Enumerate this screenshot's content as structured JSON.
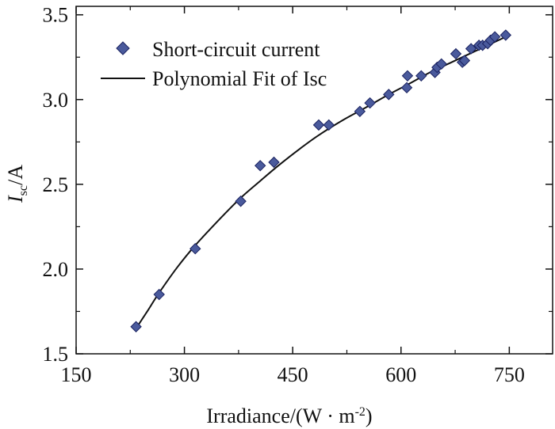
{
  "chart_data": {
    "type": "scatter",
    "title": "",
    "xlabel": "Irradiance/(W · m",
    "xlabel_sup": "-2",
    "xlabel_close": ")",
    "ylabel_main": "I",
    "ylabel_sub": "sc",
    "ylabel_tail": "/A",
    "xlim": [
      150,
      810
    ],
    "ylim": [
      1.5,
      3.55
    ],
    "xticks": [
      150,
      300,
      450,
      600,
      750
    ],
    "yticks": [
      1.5,
      2.0,
      2.5,
      3.0,
      3.5
    ],
    "xtick_labels": [
      "150",
      "300",
      "450",
      "600",
      "750"
    ],
    "ytick_labels": [
      "1.5",
      "2.0",
      "2.5",
      "3.0",
      "3.5"
    ],
    "legend_position": "top-left",
    "series": [
      {
        "name": "Short-circuit current",
        "kind": "scatter",
        "marker": "diamond",
        "color": "#4a5a9c",
        "points": [
          [
            233,
            1.66
          ],
          [
            265,
            1.85
          ],
          [
            315,
            2.12
          ],
          [
            378,
            2.4
          ],
          [
            405,
            2.61
          ],
          [
            424,
            2.63
          ],
          [
            486,
            2.85
          ],
          [
            500,
            2.85
          ],
          [
            543,
            2.93
          ],
          [
            557,
            2.98
          ],
          [
            583,
            3.03
          ],
          [
            608,
            3.07
          ],
          [
            609,
            3.14
          ],
          [
            628,
            3.14
          ],
          [
            647,
            3.16
          ],
          [
            650,
            3.19
          ],
          [
            656,
            3.21
          ],
          [
            676,
            3.27
          ],
          [
            685,
            3.22
          ],
          [
            688,
            3.23
          ],
          [
            697,
            3.3
          ],
          [
            708,
            3.32
          ],
          [
            713,
            3.32
          ],
          [
            720,
            3.33
          ],
          [
            724,
            3.35
          ],
          [
            730,
            3.37
          ],
          [
            745,
            3.38
          ]
        ]
      },
      {
        "name": "Polynomial Fit of Isc",
        "kind": "line",
        "color": "#111111",
        "points": [
          [
            233,
            1.65
          ],
          [
            250,
            1.76
          ],
          [
            265,
            1.86
          ],
          [
            290,
            2.01
          ],
          [
            315,
            2.14
          ],
          [
            350,
            2.3
          ],
          [
            378,
            2.42
          ],
          [
            405,
            2.52
          ],
          [
            430,
            2.61
          ],
          [
            460,
            2.71
          ],
          [
            486,
            2.79
          ],
          [
            520,
            2.88
          ],
          [
            550,
            2.95
          ],
          [
            583,
            3.03
          ],
          [
            610,
            3.09
          ],
          [
            640,
            3.16
          ],
          [
            670,
            3.22
          ],
          [
            700,
            3.28
          ],
          [
            725,
            3.33
          ],
          [
            745,
            3.37
          ]
        ]
      }
    ]
  }
}
